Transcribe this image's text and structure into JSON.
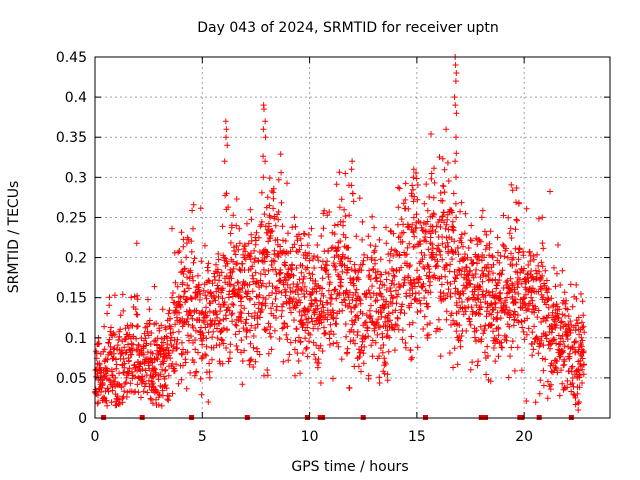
{
  "chart_data": {
    "type": "scatter",
    "title": "Day 043 of 2024, SRMTID for receiver uptn",
    "xlabel": "GPS time / hours",
    "ylabel": "SRMTID / TECUs",
    "xlim": [
      0,
      24
    ],
    "ylim": [
      0,
      0.45
    ],
    "grid": true,
    "marker": "plus",
    "color": "#ff0000",
    "xticks": [
      0,
      5,
      10,
      15,
      20
    ],
    "xtick_labels": [
      "0",
      "5",
      "10",
      "15",
      "20"
    ],
    "yticks": [
      0,
      0.05,
      0.1,
      0.15,
      0.2,
      0.25,
      0.3,
      0.35,
      0.4,
      0.45
    ],
    "ytick_labels": [
      "0",
      "0.05",
      "0.1",
      "0.15",
      "0.2",
      "0.25",
      "0.3",
      "0.35",
      "0.4",
      "0.45"
    ],
    "profile_x": [
      0,
      0.5,
      1,
      1.5,
      2,
      2.5,
      3,
      3.5,
      4,
      4.5,
      5,
      5.5,
      6,
      6.5,
      7,
      7.5,
      8,
      8.5,
      9,
      9.5,
      10,
      10.5,
      11,
      11.5,
      12,
      12.5,
      13,
      13.5,
      14,
      14.5,
      15,
      15.5,
      16,
      16.5,
      17,
      17.5,
      18,
      18.5,
      19,
      19.5,
      20,
      20.5,
      21,
      21.5,
      22,
      22.5,
      22.8
    ],
    "profile_y": [
      0.05,
      0.055,
      0.06,
      0.07,
      0.08,
      0.065,
      0.06,
      0.08,
      0.14,
      0.15,
      0.11,
      0.13,
      0.15,
      0.16,
      0.14,
      0.17,
      0.16,
      0.2,
      0.17,
      0.15,
      0.14,
      0.13,
      0.16,
      0.19,
      0.14,
      0.13,
      0.15,
      0.13,
      0.16,
      0.18,
      0.19,
      0.2,
      0.21,
      0.2,
      0.17,
      0.16,
      0.16,
      0.14,
      0.13,
      0.17,
      0.15,
      0.14,
      0.13,
      0.1,
      0.09,
      0.08,
      0.1
    ],
    "peaks": [
      {
        "x": 6.1,
        "values": [
          0.32,
          0.34,
          0.35,
          0.36,
          0.37,
          0.28,
          0.26
        ]
      },
      {
        "x": 7.9,
        "values": [
          0.39,
          0.385,
          0.37,
          0.36,
          0.35,
          0.32,
          0.3
        ]
      },
      {
        "x": 12.0,
        "values": [
          0.32,
          0.31,
          0.29,
          0.28,
          0.27
        ]
      },
      {
        "x": 14.8,
        "values": [
          0.31,
          0.3,
          0.29,
          0.28,
          0.27
        ]
      },
      {
        "x": 16.8,
        "values": [
          0.45,
          0.44,
          0.43,
          0.42,
          0.4,
          0.39,
          0.38,
          0.35,
          0.33,
          0.32,
          0.3
        ]
      },
      {
        "x": 22.5,
        "values": [
          0.03,
          0.02,
          0.01
        ]
      }
    ],
    "zero_marks_x": [
      0.4,
      2.2,
      4.5,
      7.1,
      9.9,
      10.5,
      10.6,
      12.5,
      15.4,
      18.0,
      18.2,
      19.8,
      19.9,
      20.7,
      22.2
    ]
  }
}
